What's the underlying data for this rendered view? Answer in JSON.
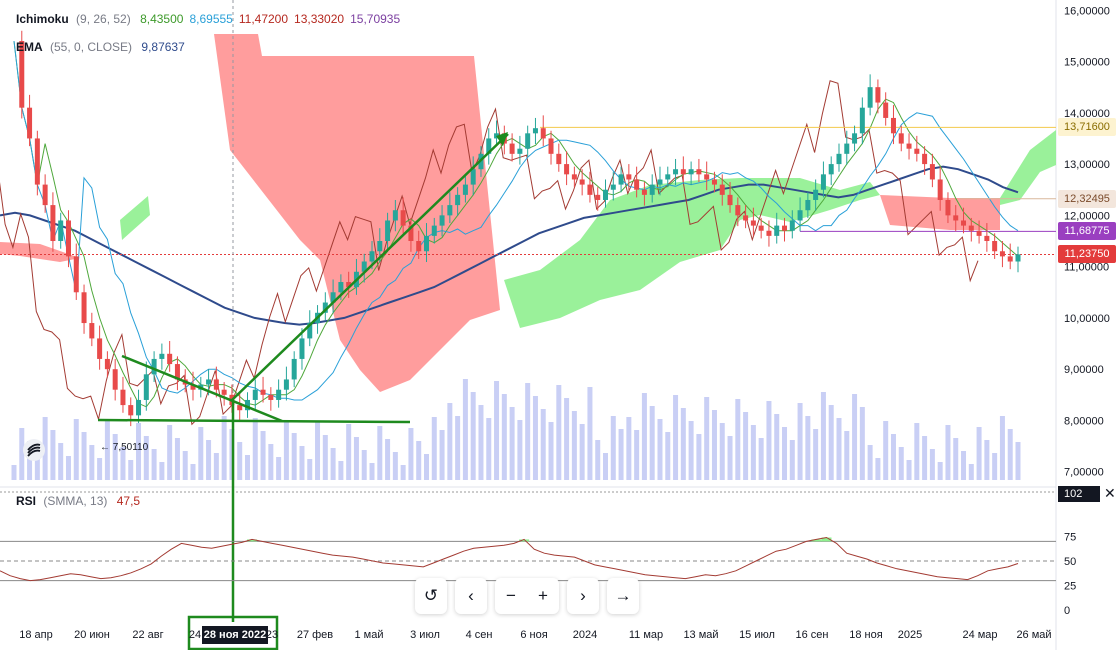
{
  "legend": {
    "ichimoku": {
      "name": "Ichimoku",
      "params": "(9, 26, 52)",
      "values": [
        {
          "text": "8,43500",
          "color": "#3d9a2a"
        },
        {
          "text": "8,69555",
          "color": "#2aa0d8"
        },
        {
          "text": "11,47200",
          "color": "#b5281f"
        },
        {
          "text": "13,33020",
          "color": "#b5281f"
        },
        {
          "text": "15,70935",
          "color": "#7b3fa0"
        }
      ]
    },
    "ema": {
      "name": "EMA",
      "params": "(55, 0, CLOSE)",
      "value": "9,87637",
      "color": "#2f4b8c"
    },
    "rsi": {
      "name": "RSI",
      "params": "(SMMA, 13)",
      "value": "47,5",
      "color": "#b5281f"
    }
  },
  "price_badges": [
    {
      "text": "13,71600",
      "value": 13.716,
      "bg": "#fdf3d0",
      "fg": "#8a6d00"
    },
    {
      "text": "12,32495",
      "value": 12.325,
      "bg": "#f3e6dc",
      "fg": "#7a4a2a"
    },
    {
      "text": "11,68775",
      "value": 11.688,
      "bg": "#9a3fc0",
      "fg": "#ffffff"
    },
    {
      "text": "11,23750",
      "value": 11.2375,
      "bg": "#e33b3b",
      "fg": "#ffffff"
    }
  ],
  "rsi_badge": "102",
  "date_badge": "28 ноя 2022",
  "low_label": "← 7,50110",
  "colors": {
    "up": "#26a69a",
    "down": "#e84a4a",
    "cloud_red": "#ff8c8c",
    "cloud_green": "#8ff08f",
    "ema": "#2f4b8c",
    "tenkan": "#4fa83c",
    "kijun": "#2aa0d8",
    "chikou": "#a33b33",
    "volume": "#c9cff5",
    "drawing": "#1e8a1e"
  },
  "toolbar": {
    "icons": [
      "reset-icon",
      "scroll-left-icon",
      "zoom-out-icon",
      "zoom-in-icon",
      "scroll-right-icon",
      "go-to-realtime-icon"
    ],
    "glyphs": [
      "↺",
      "‹",
      "−",
      "+",
      "›",
      "→"
    ]
  },
  "chart_data": {
    "type": "line",
    "price_axis": {
      "ticks": [
        "16,00000",
        "15,00000",
        "14,00000",
        "13,00000",
        "12,00000",
        "11,00000",
        "10,00000",
        "9,00000",
        "8,00000",
        "7,00000"
      ],
      "ylim": [
        6.8,
        16.2
      ]
    },
    "rsi_axis": {
      "ticks": [
        "75",
        "50",
        "25",
        "0"
      ],
      "levels": [
        70,
        50,
        30
      ]
    },
    "time_axis": {
      "ticks": [
        "18 апр",
        "20 июн",
        "22 авг",
        "24",
        "28 ноя 2022",
        "23",
        "27 фев",
        "1 май",
        "3 июл",
        "4 сен",
        "6 ноя",
        "2024",
        "11 мар",
        "13 май",
        "15 июл",
        "16 сен",
        "18 ноя",
        "2025",
        "24 мар",
        "26 май"
      ]
    },
    "close": [
      15.4,
      14.1,
      13.5,
      12.6,
      12.2,
      11.5,
      11.9,
      11.2,
      10.5,
      9.9,
      9.6,
      9.2,
      9.0,
      8.6,
      8.3,
      8.1,
      8.4,
      8.9,
      9.2,
      9.3,
      9.1,
      8.8,
      8.7,
      8.6,
      8.7,
      8.8,
      8.6,
      8.5,
      8.3,
      8.2,
      8.4,
      8.6,
      8.5,
      8.4,
      8.6,
      8.8,
      9.2,
      9.6,
      9.9,
      10.1,
      10.3,
      10.5,
      10.7,
      10.6,
      10.9,
      11.1,
      11.3,
      11.5,
      11.9,
      12.1,
      11.8,
      11.5,
      11.3,
      11.6,
      11.8,
      12.0,
      12.2,
      12.4,
      12.6,
      12.9,
      13.2,
      13.5,
      13.6,
      13.4,
      13.2,
      13.3,
      13.6,
      13.7,
      13.5,
      13.2,
      13.0,
      12.8,
      12.7,
      12.6,
      12.4,
      12.3,
      12.5,
      12.6,
      12.8,
      12.7,
      12.5,
      12.4,
      12.6,
      12.7,
      12.8,
      12.9,
      12.8,
      12.9,
      12.8,
      12.7,
      12.6,
      12.4,
      12.2,
      12.0,
      11.9,
      11.8,
      11.7,
      11.6,
      11.8,
      11.7,
      11.9,
      12.1,
      12.3,
      12.5,
      12.8,
      13.0,
      13.2,
      13.4,
      13.6,
      14.1,
      14.5,
      14.2,
      13.9,
      13.6,
      13.4,
      13.3,
      13.2,
      13.0,
      12.7,
      12.3,
      12.0,
      11.9,
      11.8,
      11.7,
      11.6,
      11.5,
      11.3,
      11.2,
      11.1,
      11.24
    ],
    "ema": [
      12.0,
      12.05,
      12.0,
      11.9,
      11.8,
      11.7,
      11.55,
      11.4,
      11.25,
      11.1,
      10.95,
      10.8,
      10.65,
      10.5,
      10.35,
      10.2,
      10.1,
      10.0,
      9.95,
      9.9,
      9.87,
      9.9,
      9.95,
      10.0,
      10.1,
      10.2,
      10.3,
      10.4,
      10.5,
      10.6,
      10.75,
      10.9,
      11.05,
      11.2,
      11.35,
      11.5,
      11.65,
      11.75,
      11.85,
      11.95,
      12.0,
      12.05,
      12.1,
      12.15,
      12.2,
      12.25,
      12.3,
      12.4,
      12.5,
      12.55,
      12.6,
      12.6,
      12.55,
      12.5,
      12.45,
      12.4,
      12.35,
      12.4,
      12.5,
      12.6,
      12.7,
      12.8,
      12.9,
      12.95,
      12.9,
      12.8,
      12.7,
      12.55,
      12.45
    ],
    "rsi": [
      40,
      35,
      32,
      30,
      31,
      33,
      35,
      37,
      36,
      34,
      32,
      33,
      35,
      38,
      42,
      47,
      55,
      62,
      68,
      66,
      64,
      63,
      65,
      67,
      69,
      72,
      70,
      68,
      66,
      64,
      62,
      60,
      58,
      56,
      55,
      54,
      52,
      50,
      48,
      47,
      46,
      45,
      44,
      48,
      52,
      56,
      60,
      63,
      64,
      65,
      66,
      68,
      72,
      62,
      58,
      56,
      55,
      54,
      50,
      46,
      44,
      42,
      40,
      38,
      36,
      35,
      34,
      33,
      32,
      34,
      36,
      35,
      37,
      40,
      45,
      50,
      55,
      60,
      62,
      66,
      70,
      72,
      74,
      68,
      58,
      55,
      52,
      48,
      45,
      42,
      40,
      38,
      36,
      34,
      33,
      32,
      31,
      35,
      40,
      42,
      44,
      47.5
    ]
  }
}
